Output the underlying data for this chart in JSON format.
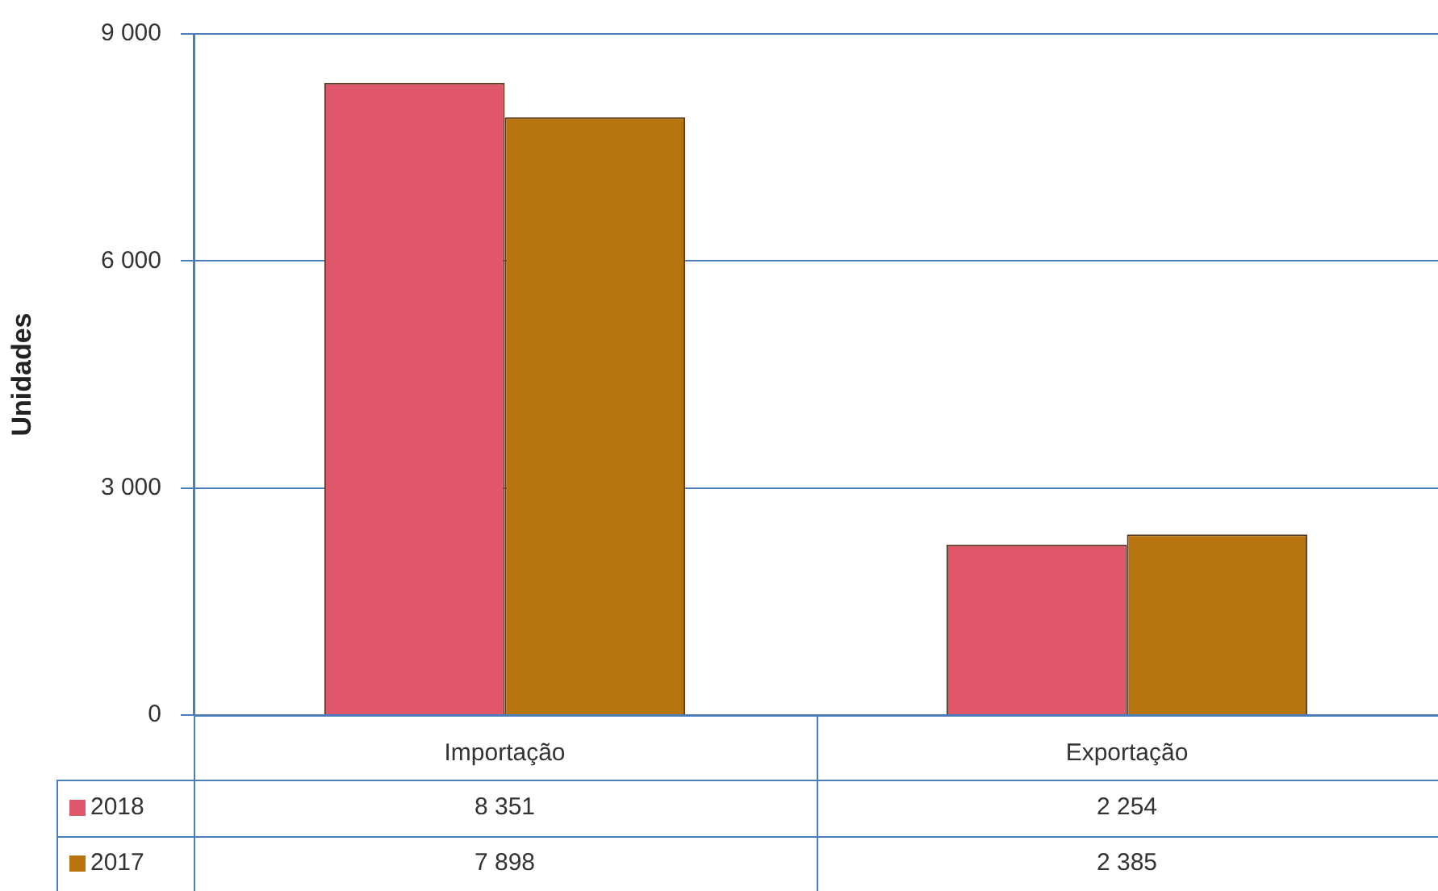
{
  "chart_data": {
    "type": "bar",
    "ylabel": "Unidades",
    "categories": [
      "Importação",
      "Exportação"
    ],
    "series": [
      {
        "name": "2018",
        "color": "#e0566a",
        "values": [
          8351,
          2254
        ],
        "value_labels": [
          "8 351",
          "2 254"
        ]
      },
      {
        "name": "2017",
        "color": "#b8740f",
        "values": [
          7898,
          2385
        ],
        "value_labels": [
          "7 898",
          "2 385"
        ]
      }
    ],
    "ylim": [
      0,
      9000
    ],
    "yticks": [
      0,
      {
        "value": 3000,
        "label": "3 000"
      },
      {
        "value": 6000,
        "label": "6 000"
      },
      {
        "value": 9000,
        "label": "9 000"
      }
    ],
    "grid": "y",
    "legend": "bottom",
    "tick_labels": "y"
  }
}
